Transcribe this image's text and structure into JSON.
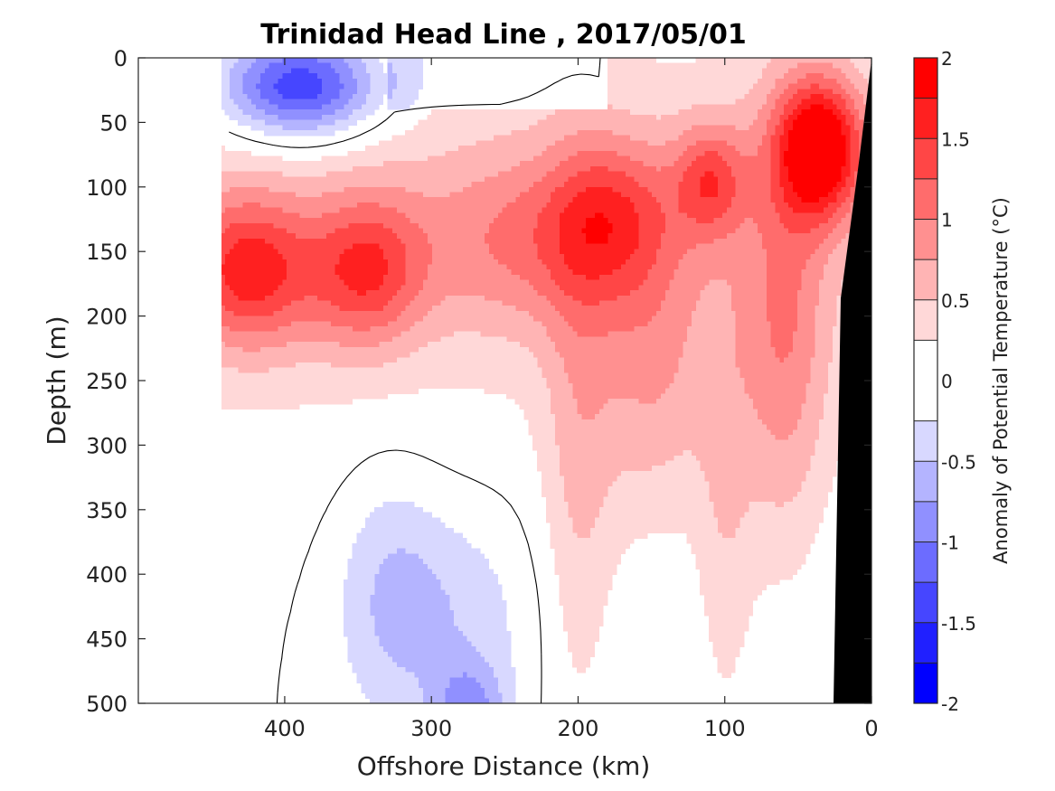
{
  "chart_data": {
    "type": "heatmap",
    "subtype": "filled-contour section",
    "title": "Trinidad Head Line , 2017/05/01",
    "xlabel": "Offshore Distance (km)",
    "ylabel": "Depth (m)",
    "x_reversed": true,
    "y_reversed": true,
    "xlim": [
      490,
      0
    ],
    "ylim": [
      500,
      0
    ],
    "xticks": [
      400,
      300,
      200,
      100,
      0
    ],
    "yticks": [
      0,
      50,
      100,
      150,
      200,
      250,
      300,
      350,
      400,
      450,
      500
    ],
    "grid": false,
    "colorbar": {
      "label": "Anomaly of Potential Temperature (°C)",
      "ticks": [
        "2",
        "1.5",
        "1",
        "0.5",
        "0",
        "-0.5",
        "-1",
        "-1.5",
        "-2"
      ],
      "tick_values": [
        2,
        1.5,
        1,
        0.5,
        0,
        -0.5,
        -1,
        -1.5,
        -2
      ],
      "range": [
        -2,
        2
      ],
      "levels": [
        -2,
        -1.75,
        -1.5,
        -1.25,
        -1,
        -0.75,
        -0.5,
        -0.25,
        0.25,
        0.5,
        0.75,
        1,
        1.25,
        1.5,
        1.75,
        2
      ],
      "colors": [
        "#0000ff",
        "#2020ff",
        "#4646ff",
        "#6c6cff",
        "#9090ff",
        "#b4b4ff",
        "#d8d8ff",
        "#ffffff",
        "#ffd8d8",
        "#ffb4b4",
        "#ff9090",
        "#ff6c6c",
        "#ff4646",
        "#ff2020",
        "#ff0000"
      ]
    },
    "features": [
      {
        "name": "warm anomaly core near shelf",
        "x_km": 35,
        "depth_m": 70,
        "value": 1.9
      },
      {
        "name": "warm anomaly offshore",
        "x_km": 425,
        "depth_m": 165,
        "value": 1.4
      },
      {
        "name": "warm anomaly offshore",
        "x_km": 345,
        "depth_m": 165,
        "value": 1.2
      },
      {
        "name": "warm anomaly",
        "x_km": 110,
        "depth_m": 95,
        "value": 1.0
      },
      {
        "name": "cold anomaly near surface",
        "x_km": 390,
        "depth_m": 20,
        "value": -0.9
      },
      {
        "name": "cold anomaly at depth",
        "x_km": 280,
        "depth_m": 490,
        "value": -0.3
      }
    ],
    "land_mask": "continental shelf/slope shown in black at x near 0 km",
    "data_extent_x_km": [
      0,
      443
    ]
  }
}
